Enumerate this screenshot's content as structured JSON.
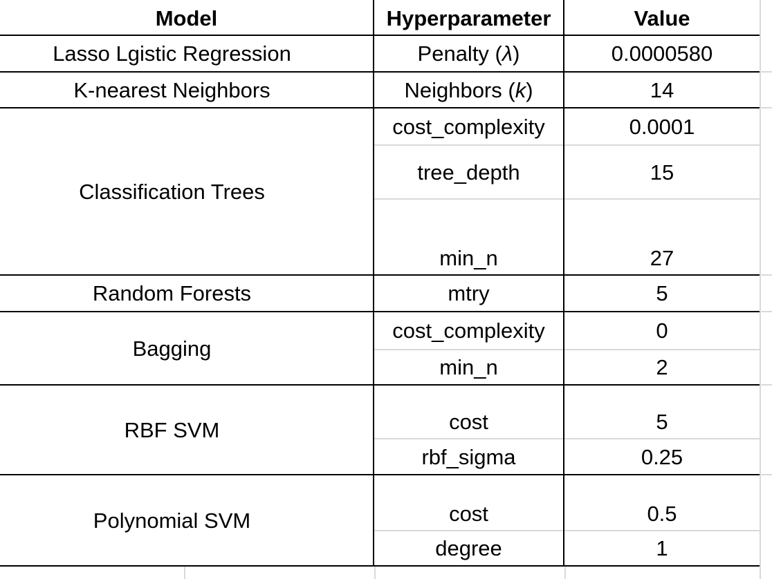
{
  "table": {
    "headers": {
      "model": "Model",
      "hyperparameter": "Hyperparameter",
      "value": "Value"
    },
    "models": {
      "lasso": "Lasso Lgistic Regression",
      "knn": "K-nearest Neighbors",
      "trees": "Classification Trees",
      "rf": "Random Forests",
      "bagging": "Bagging",
      "rbf_svm": "RBF SVM",
      "poly_svm": "Polynomial SVM"
    },
    "rows": [
      {
        "param": "Penalty (λ)",
        "value": "0.0000580"
      },
      {
        "param": "Neighbors (k)",
        "value": "14"
      },
      {
        "param": "cost_complexity",
        "value": "0.0001"
      },
      {
        "param": "tree_depth",
        "value": "15"
      },
      {
        "param": "min_n",
        "value": "27"
      },
      {
        "param": "mtry",
        "value": "5"
      },
      {
        "param": "cost_complexity",
        "value": "0"
      },
      {
        "param": "min_n",
        "value": "2"
      },
      {
        "param": "cost",
        "value": "5"
      },
      {
        "param": "rbf_sigma",
        "value": "0.25"
      },
      {
        "param": "cost",
        "value": "0.5"
      },
      {
        "param": "degree",
        "value": "1"
      }
    ]
  }
}
